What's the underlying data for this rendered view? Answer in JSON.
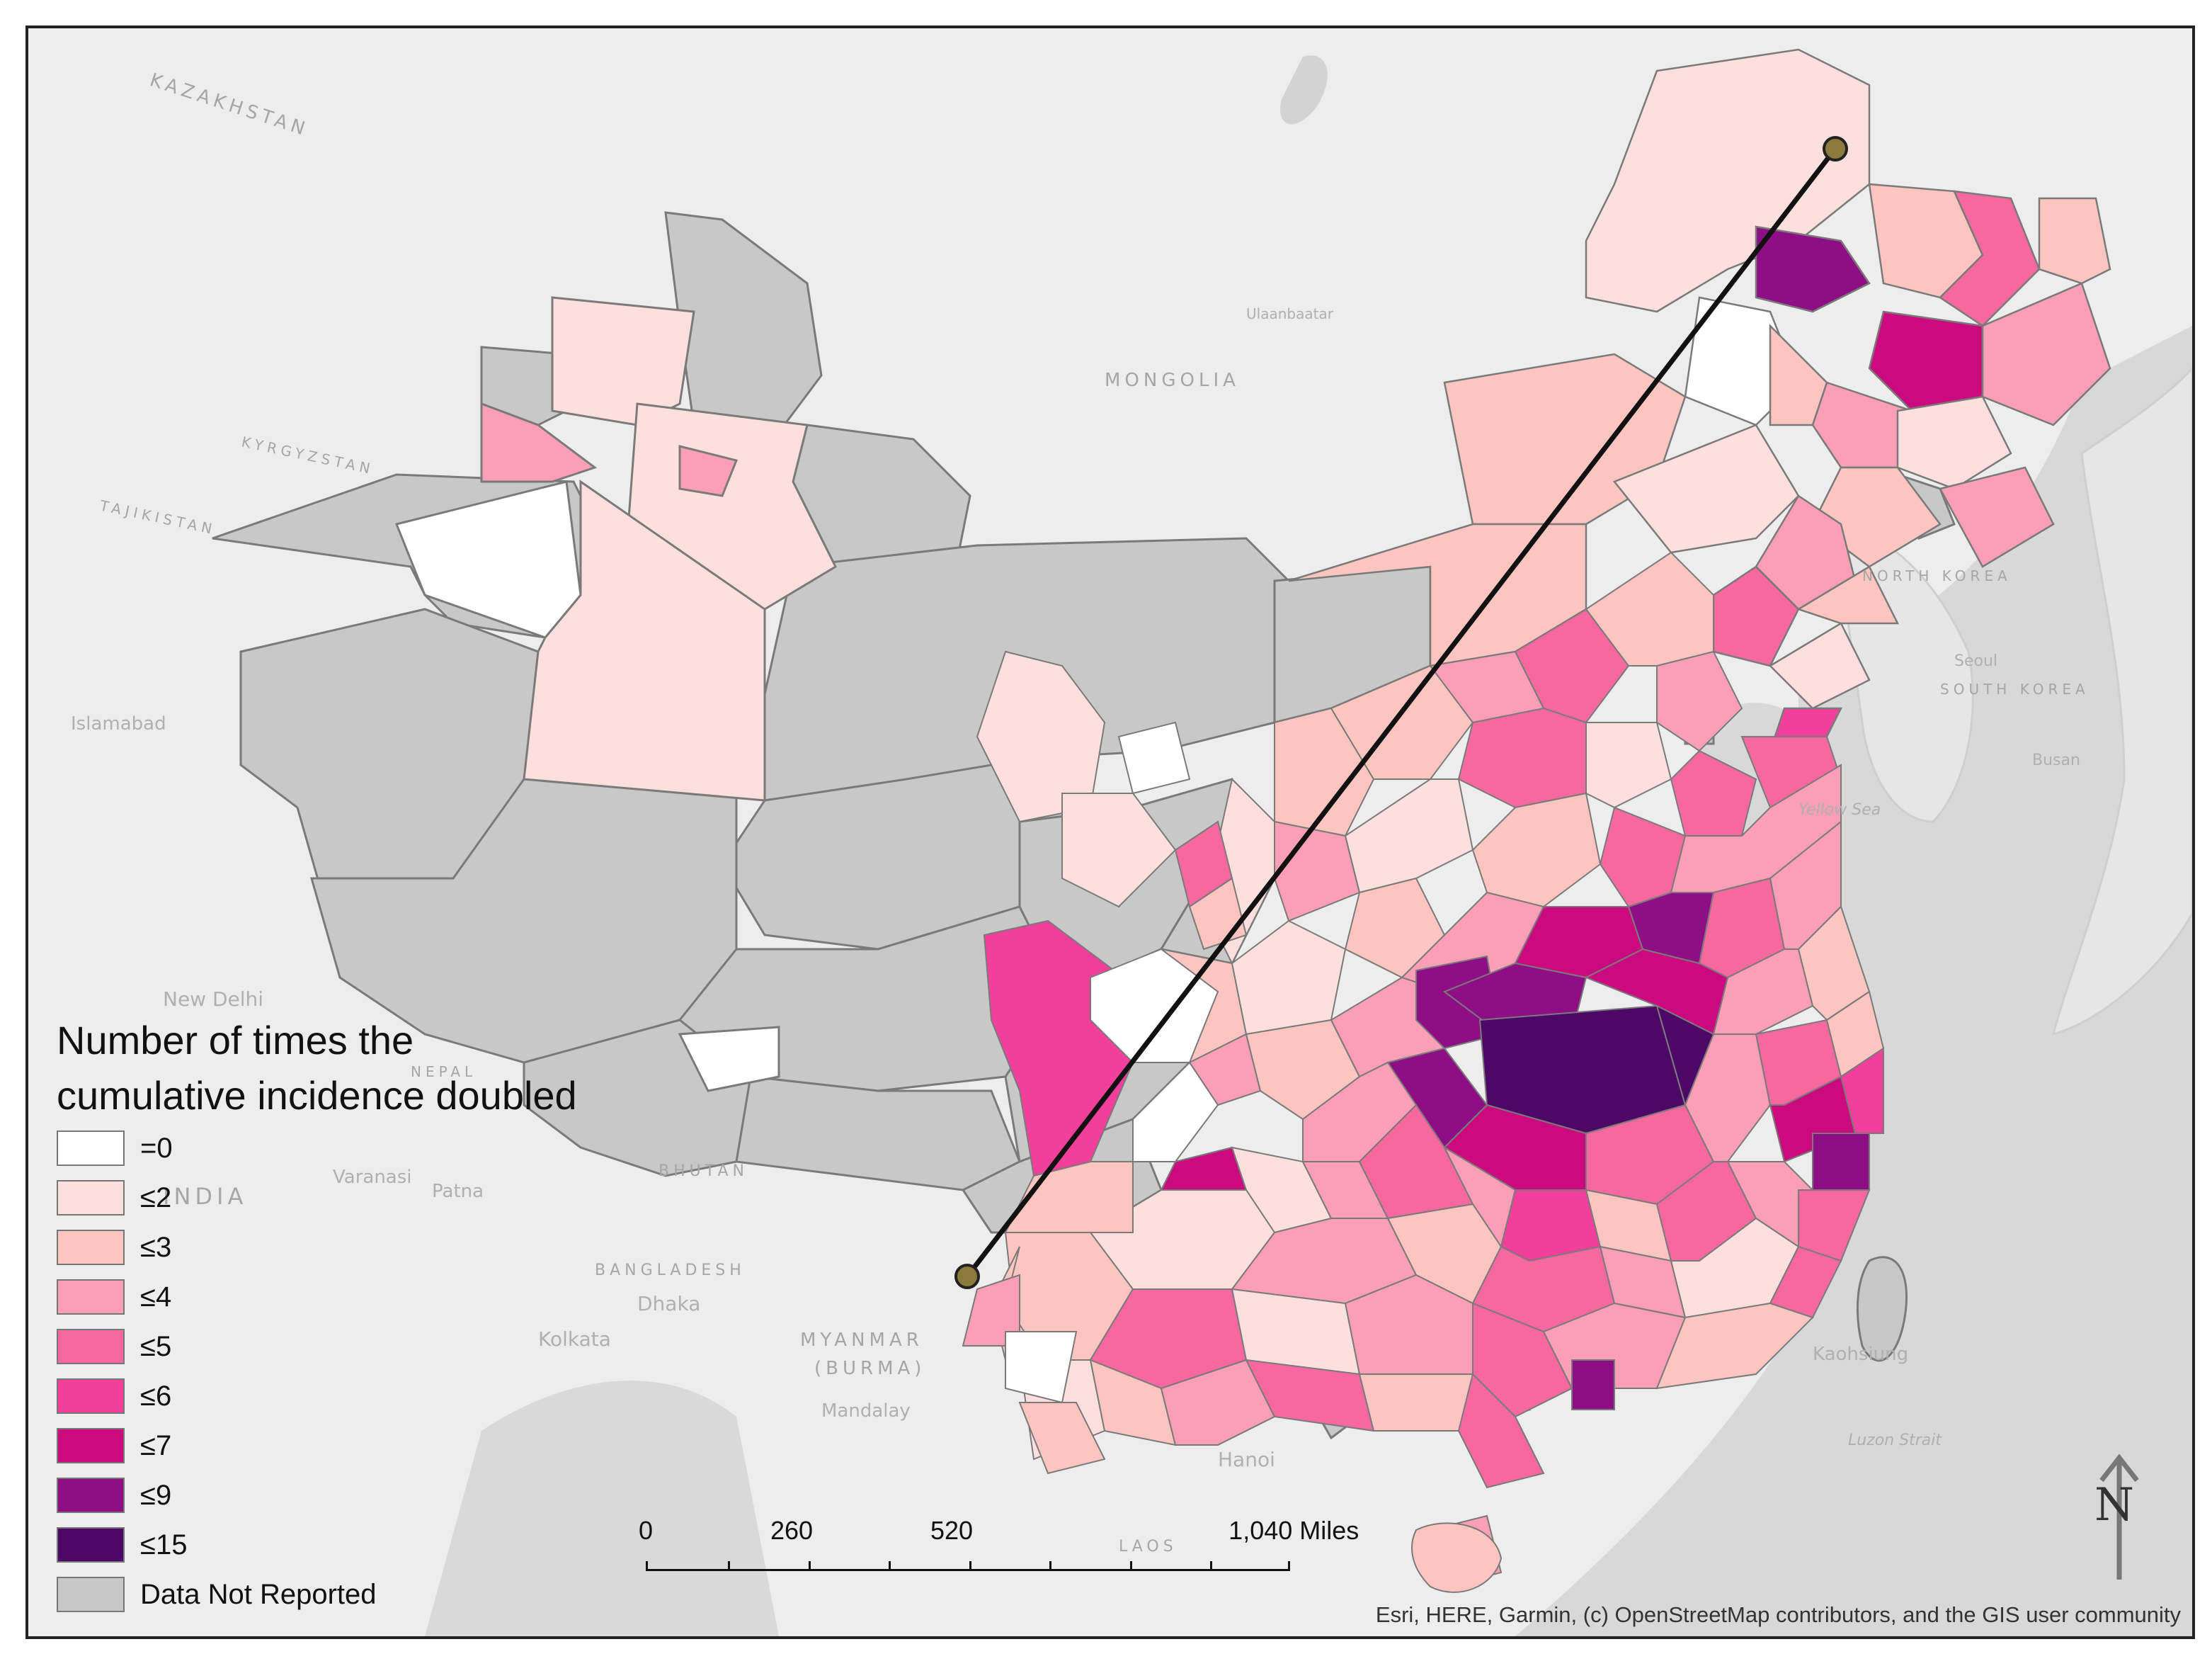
{
  "legend": {
    "title_line1": "Number of times the",
    "title_line2": "cumulative incidence doubled",
    "items": [
      {
        "label": "=0",
        "color": "#ffffff"
      },
      {
        "label": "≤2",
        "color": "#fde0dd"
      },
      {
        "label": "≤3",
        "color": "#fcc5c0"
      },
      {
        "label": "≤4",
        "color": "#fa9fb5"
      },
      {
        "label": "≤5",
        "color": "#f768a1"
      },
      {
        "label": "≤6",
        "color": "#f23f9c"
      },
      {
        "label": "≤7",
        "color": "#cc0a80"
      },
      {
        "label": "≤9",
        "color": "#8e0e85"
      },
      {
        "label": "≤15",
        "color": "#4d0867"
      },
      {
        "label": "Data Not Reported",
        "color": "#c8c8c8"
      }
    ]
  },
  "scale_bar": {
    "labels": [
      "0",
      "260",
      "520",
      "1,040 Miles"
    ]
  },
  "north_arrow": {
    "letter": "N",
    "icon": "north-arrow-icon"
  },
  "attribution": "Esri, HERE, Garmin, (c) OpenStreetMap contributors, and the GIS user community",
  "basemap_labels": {
    "kazakhstan": "KAZAKHSTAN",
    "mongolia": "MONGOLIA",
    "kyrgyzstan": "KYRGYZSTAN",
    "tajikistan": "TAJIKISTAN",
    "india": "INDIA",
    "nepal": "NEPAL",
    "bhutan": "BHUTAN",
    "bangladesh": "BANGLADESH",
    "myanmar": "MYANMAR",
    "burma": "(BURMA)",
    "north_korea": "NORTH KOREA",
    "south_korea": "SOUTH KOREA",
    "laos": "LAOS",
    "yellow_sea": "Yellow Sea",
    "ulaanbaatar": "Ulaanbaatar",
    "new_delhi": "New Delhi",
    "islamabad": "Islamabad",
    "kolkata": "Kolkata",
    "dhaka": "Dhaka",
    "hanoi": "Hanoi",
    "mandalay": "Mandalay",
    "varanasi": "Varanasi",
    "patna": "Patna",
    "seoul": "Seoul",
    "busan": "Busan",
    "luzon_strait": "Luzon Strait",
    "kaohsiung": "Kaohsiung"
  }
}
